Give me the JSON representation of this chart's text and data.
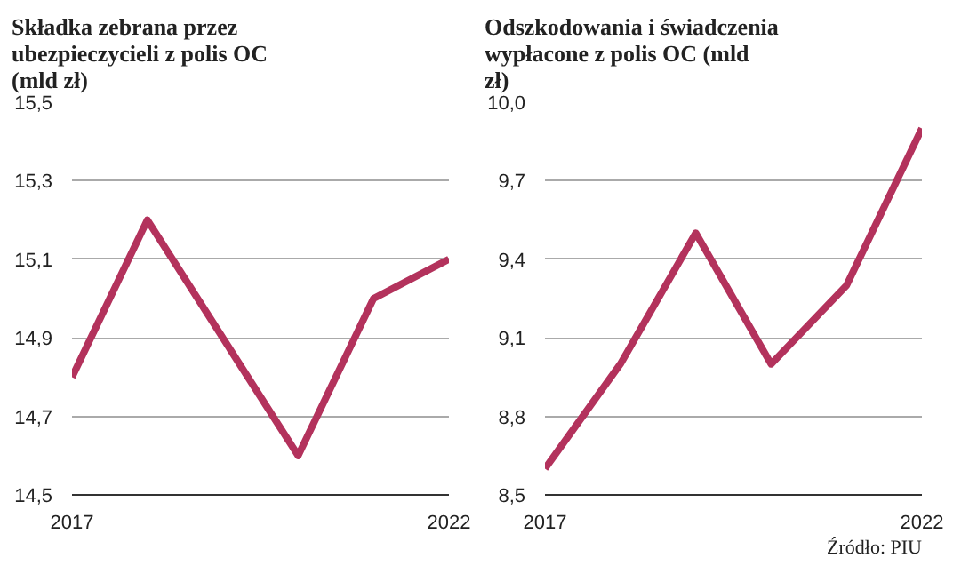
{
  "chart_data": [
    {
      "type": "line",
      "title": "Składka zebrana przez ubezpieczycieli z polis OC (mld zł)",
      "x": [
        2017,
        2018,
        2019,
        2020,
        2021,
        2022
      ],
      "series": [
        {
          "color": "#b3325c",
          "values": [
            14.8,
            15.2,
            14.9,
            14.6,
            15.0,
            15.1
          ]
        }
      ],
      "xlim": [
        2017,
        2022
      ],
      "xticks": [
        2017,
        2022
      ],
      "ylim": [
        14.5,
        15.5
      ],
      "yticks": [
        {
          "value": 14.5,
          "label": "14,5"
        },
        {
          "value": 14.7,
          "label": "14,7"
        },
        {
          "value": 14.9,
          "label": "14,9"
        },
        {
          "value": 15.1,
          "label": "15,1"
        },
        {
          "value": 15.3,
          "label": "15,3"
        },
        {
          "value": 15.5,
          "label": "15,5"
        }
      ],
      "grid": "y",
      "line_style": "solid"
    },
    {
      "type": "line",
      "title": "Odszkodowania i świadczenia wypłacone z polis OC (mld zł)",
      "x": [
        2017,
        2018,
        2019,
        2020,
        2021,
        2022
      ],
      "series": [
        {
          "color": "#b3325c",
          "values": [
            8.6,
            9.0,
            9.5,
            9.0,
            9.3,
            9.9
          ]
        }
      ],
      "xlim": [
        2017,
        2022
      ],
      "xticks": [
        2017,
        2022
      ],
      "ylim": [
        8.5,
        10.0
      ],
      "yticks": [
        {
          "value": 8.5,
          "label": "8,5"
        },
        {
          "value": 8.8,
          "label": "8,8"
        },
        {
          "value": 9.1,
          "label": "9,1"
        },
        {
          "value": 9.4,
          "label": "9,4"
        },
        {
          "value": 9.7,
          "label": "9,7"
        },
        {
          "value": 10.0,
          "label": "10,0"
        }
      ],
      "grid": "y",
      "line_style": "solid",
      "annotations": [
        "Źródło: PIU"
      ]
    }
  ]
}
